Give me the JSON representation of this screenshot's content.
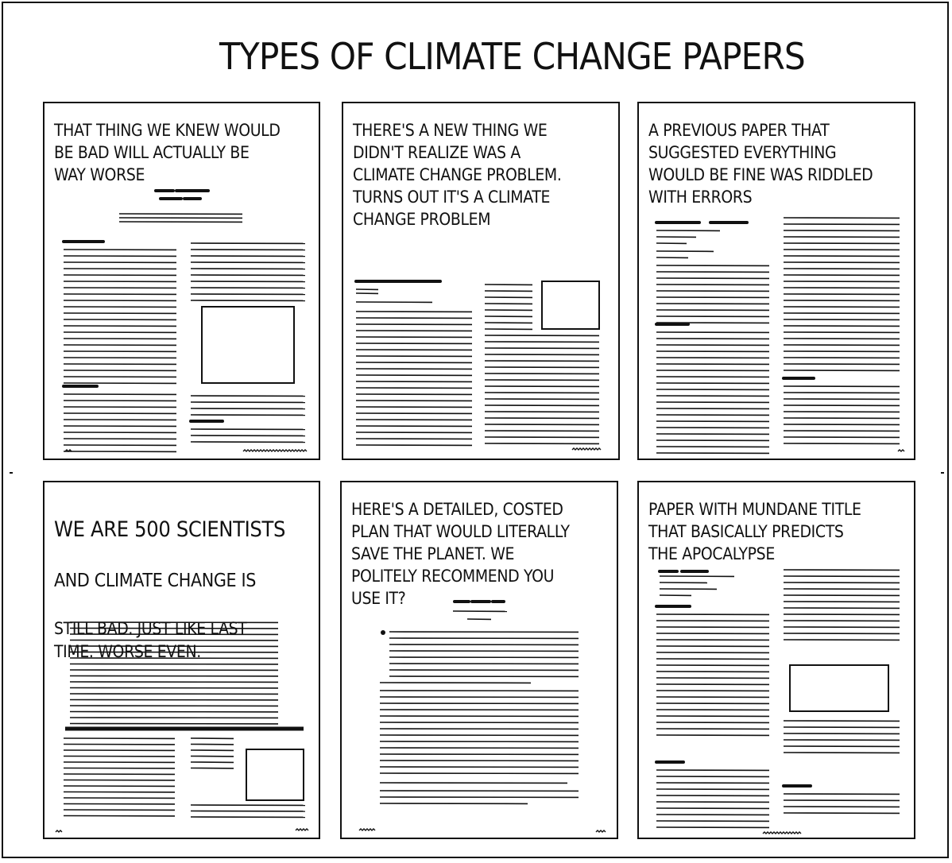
{
  "title": "TYPES OF CLIMATE CHANGE PAPERS",
  "panels": [
    {
      "text": "THAT THING WE KNEW WOULD\nBE BAD WILL ACTUALLY BE\nWAY WORSE"
    },
    {
      "text": "THERE'S A NEW THING WE\nDIDN'T REALIZE WAS A\nCLIMATE CHANGE PROBLEM.\nTURNS OUT IT'S A CLIMATE\nCHANGE PROBLEM"
    },
    {
      "text": "A PREVIOUS PAPER THAT\nSUGGESTED EVERYTHING\nWOULD BE FINE WAS RIDDLED\nWITH ERRORS"
    },
    {
      "line1": "WE ARE 500 SCIENTISTS",
      "line2": "AND CLIMATE CHANGE IS",
      "line3": "STILL BAD. JUST LIKE LAST\nTIME. WORSE EVEN."
    },
    {
      "text": "HERE'S A DETAILED, COSTED\nPLAN THAT WOULD LITERALLY\nSAVE THE PLANET. WE\nPOLITELY RECOMMEND YOU\nUSE IT?"
    },
    {
      "text": "PAPER WITH MUNDANE TITLE\nTHAT BASICALLY PREDICTS\nTHE APOCALYPSE"
    }
  ]
}
